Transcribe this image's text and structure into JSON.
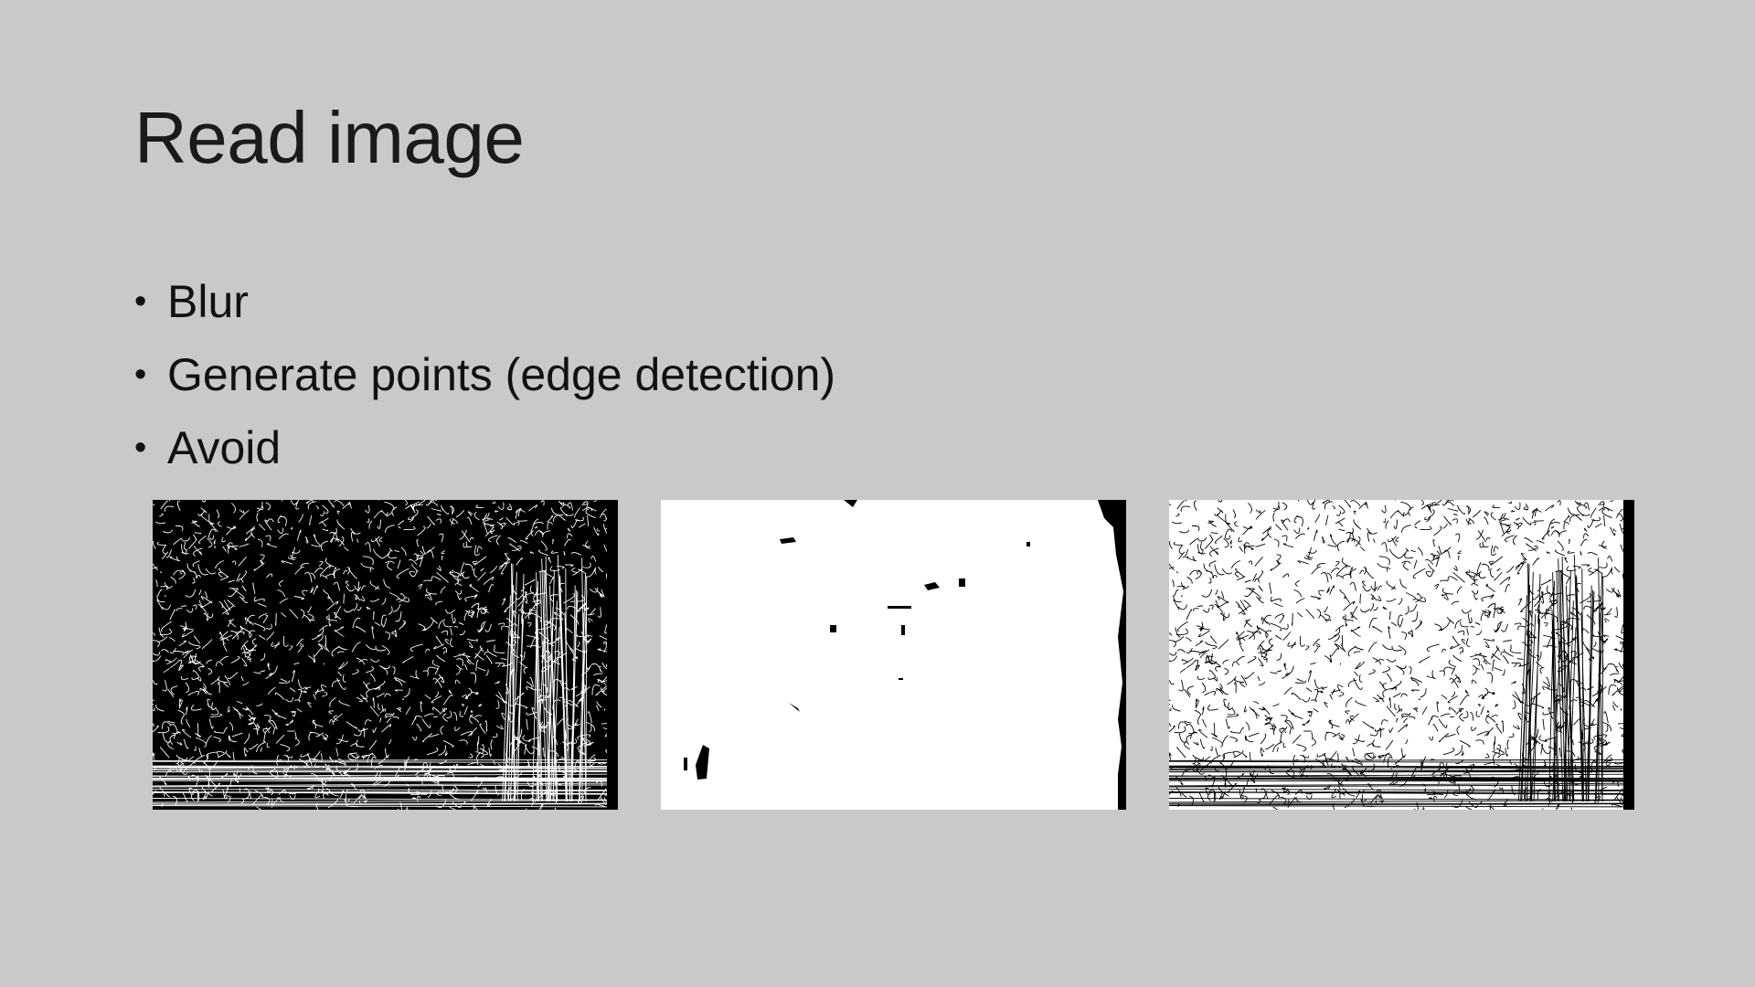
{
  "slide": {
    "title": "Read image",
    "bullets": [
      "Blur",
      "Generate points (edge detection)",
      "Avoid"
    ]
  },
  "images": [
    {
      "name": "edge-detection-dark",
      "description_icon": "image-icon"
    },
    {
      "name": "avoid-mask",
      "description_icon": "image-icon"
    },
    {
      "name": "edge-detection-inverted",
      "description_icon": "image-icon"
    }
  ],
  "colors": {
    "background": "#c9c9c9",
    "text": "#111111"
  }
}
